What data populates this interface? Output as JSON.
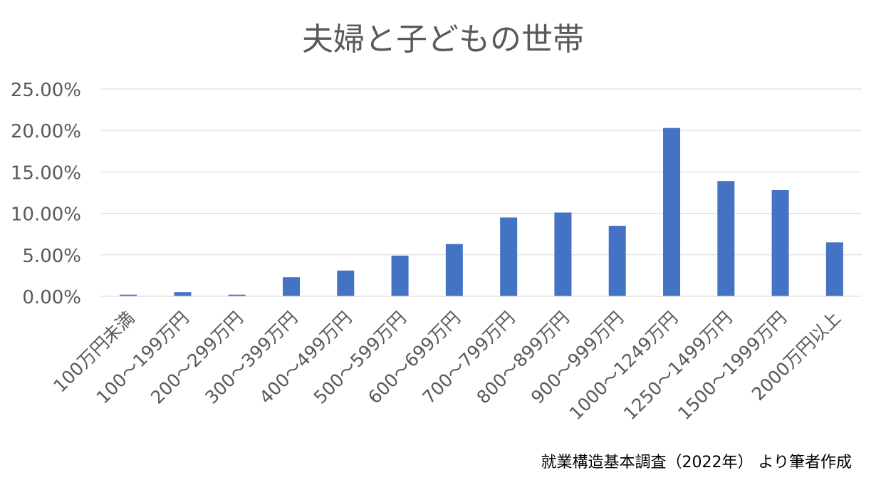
{
  "colors": {
    "bar": "#4472C4",
    "grid": "#D9D9D9",
    "axis": "#D9D9D9",
    "text": "#595959",
    "note": "#000000"
  },
  "chart_data": {
    "type": "bar",
    "title": "夫婦と子どもの世帯",
    "xlabel": "",
    "ylabel": "",
    "ylim": [
      0,
      0.25
    ],
    "grid": true,
    "legend": "none",
    "y_ticks": [
      {
        "value": 0.0,
        "label": "0.00%"
      },
      {
        "value": 0.05,
        "label": "5.00%"
      },
      {
        "value": 0.1,
        "label": "10.00%"
      },
      {
        "value": 0.15,
        "label": "15.00%"
      },
      {
        "value": 0.2,
        "label": "20.00%"
      },
      {
        "value": 0.25,
        "label": "25.00%"
      }
    ],
    "categories": [
      "100万円未満",
      "100～199万円",
      "200～299万円",
      "300～399万円",
      "400～499万円",
      "500～599万円",
      "600～699万円",
      "700～799万円",
      "800～899万円",
      "900～999万円",
      "1000～1249万円",
      "1250～1499万円",
      "1500～1999万円",
      "2000万円以上"
    ],
    "values": [
      0.002,
      0.005,
      0.002,
      0.023,
      0.031,
      0.049,
      0.063,
      0.095,
      0.101,
      0.085,
      0.203,
      0.139,
      0.128,
      0.065
    ],
    "source_note": "就業構造基本調査（2022年） より筆者作成"
  }
}
